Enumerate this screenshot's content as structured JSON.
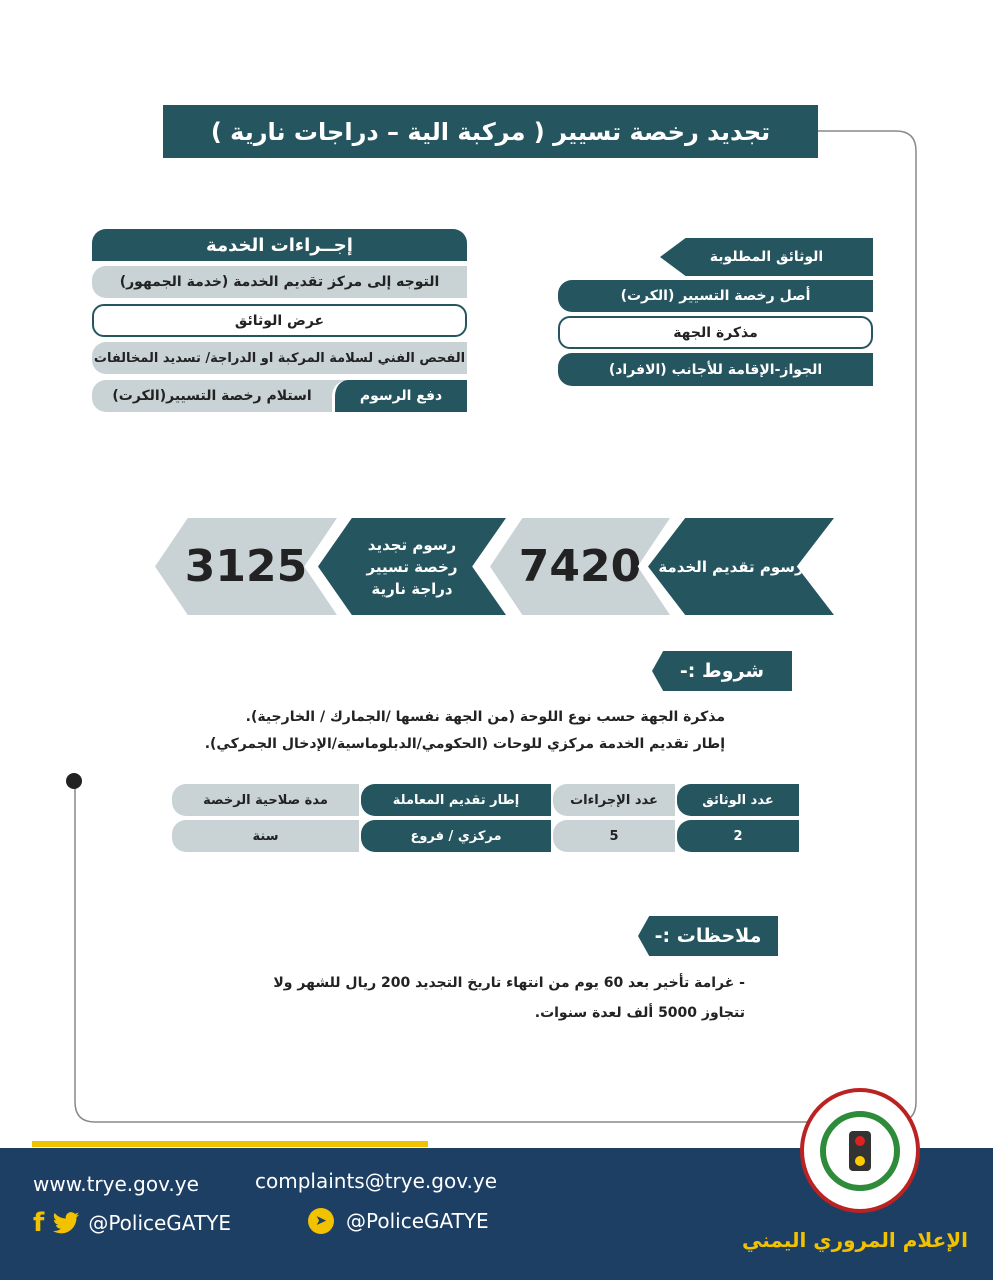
{
  "title": "تجديد رخصة تسيير ( مركبة الية – دراجات نارية )",
  "procedures": {
    "header": "إجــراءات الخدمة",
    "steps": [
      "التوجه إلى مركز تقديم الخدمة (خدمة الجمهور)",
      "عرض الوثائق",
      "الفحص الفني لسلامة المركبة او الدراجة/ تسديد المخالفات",
      "دفع الرسوم",
      "استلام رخصة التسيير(الكرت)"
    ]
  },
  "documents": {
    "header": "الوثائق المطلوبة",
    "items": [
      "أصل رخصة التسيير (الكرت)",
      "مذكرة الجهة",
      "الجواز-الإقامة للأجانب (الافراد)"
    ]
  },
  "fees": {
    "service_label": "رسوم تقديم الخدمة",
    "service_value": "7420",
    "renewal_label": "رسوم تجديد رخصة تسيير دراجة نارية",
    "renewal_value": "3125"
  },
  "conditions": {
    "header": "شروط :-",
    "lines": [
      "مذكرة الجهة حسب نوع اللوحة (من الجهة نفسها /الجمارك / الخارجية).",
      "إطار تقديم الخدمة مركزي للوحات (الحكومي/الدبلوماسية/الإدخال الجمركي)."
    ]
  },
  "table": {
    "headers": [
      "عدد الوثائق",
      "عدد الإجراءات",
      "إطار تقديم المعاملة",
      "مدة صلاحية الرخصة"
    ],
    "values": [
      "2",
      "5",
      "مركزي / فروع",
      "سنة"
    ]
  },
  "notes": {
    "header": "ملاحظات :-",
    "lines": [
      "- غرامة تأخير بعد 60 يوم من انتهاء تاريخ التجديد 200 ريال للشهر ولا",
      "تتجاوز 5000 ألف لعدة سنوات."
    ]
  },
  "footer": {
    "website": "www.trye.gov.ye",
    "email": "complaints@trye.gov.ye",
    "social_handle": "@PoliceGATYE",
    "telegram_handle": "@PoliceGATYE",
    "org_name": "الإعلام المروري اليمني"
  },
  "colors": {
    "primary": "#255660",
    "secondary": "#c9d3d6",
    "footer": "#1d3f63",
    "accent": "#f2c200"
  }
}
